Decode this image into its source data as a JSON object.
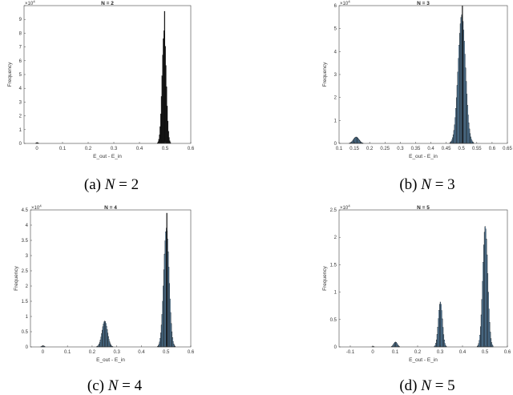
{
  "chart_data": [
    {
      "type": "bar",
      "title": "N = 2",
      "xlabel": "E_out - E_in",
      "ylabel": "Frequency",
      "y_exponent": "x10^4",
      "xlim": [
        -0.05,
        0.6
      ],
      "ylim": [
        0,
        10
      ],
      "xticks": [
        0,
        0.1,
        0.2,
        0.3,
        0.4,
        0.5,
        0.6
      ],
      "xtick_labels": [
        "0",
        "0.1",
        "0.2",
        "0.3",
        "0.4",
        "0.5",
        "0.6"
      ],
      "yticks": [
        0,
        1,
        2,
        3,
        4,
        5,
        6,
        7,
        8,
        9,
        10
      ],
      "ytick_labels": [
        "0",
        "1",
        "2",
        "3",
        "4",
        "5",
        "6",
        "7",
        "8",
        "9",
        ""
      ],
      "grid": false,
      "clusters": [
        {
          "center": 0.0,
          "sigma": 0.004,
          "peak": 0.06,
          "fill": "#1a1a1a"
        },
        {
          "center": 0.495,
          "sigma": 0.008,
          "peak": 8.2,
          "fill": "#111111"
        }
      ],
      "spikes": [
        {
          "x": 0.498,
          "value": 9.6
        }
      ],
      "caption_label": "(a)",
      "caption_var": "N",
      "caption_value": "= 2"
    },
    {
      "type": "bar",
      "title": "N = 3",
      "xlabel": "E_out - E_in",
      "ylabel": "Frequency",
      "y_exponent": "x10^4",
      "xlim": [
        0.1,
        0.65
      ],
      "ylim": [
        0,
        6
      ],
      "xticks": [
        0.1,
        0.15,
        0.2,
        0.25,
        0.3,
        0.35,
        0.4,
        0.45,
        0.5,
        0.55,
        0.6,
        0.65
      ],
      "xtick_labels": [
        "0.1",
        "0.15",
        "0.2",
        "0.25",
        "0.3",
        "0.35",
        "0.4",
        "0.45",
        "0.5",
        "0.55",
        "0.6",
        "0.65"
      ],
      "yticks": [
        0,
        1,
        2,
        3,
        4,
        5,
        6
      ],
      "ytick_labels": [
        "0",
        "1",
        "2",
        "3",
        "4",
        "5",
        "6"
      ],
      "grid": false,
      "clusters": [
        {
          "center": 0.155,
          "sigma": 0.009,
          "peak": 0.28,
          "fill": "#6fa8d6"
        },
        {
          "center": 0.5,
          "sigma": 0.012,
          "peak": 5.6,
          "fill": "#6fa8d6"
        }
      ],
      "spikes": [
        {
          "x": 0.503,
          "value": 6.0
        }
      ],
      "caption_label": "(b)",
      "caption_var": "N",
      "caption_value": "= 3"
    },
    {
      "type": "bar",
      "title": "N = 4",
      "xlabel": "E_out - E_in",
      "ylabel": "Frequency",
      "y_exponent": "x10^4",
      "xlim": [
        -0.05,
        0.6
      ],
      "ylim": [
        0,
        4.5
      ],
      "xticks": [
        0,
        0.1,
        0.2,
        0.3,
        0.4,
        0.5,
        0.6
      ],
      "xtick_labels": [
        "0",
        "0.1",
        "0.2",
        "0.3",
        "0.4",
        "0.5",
        "0.6"
      ],
      "yticks": [
        0,
        0.5,
        1,
        1.5,
        2,
        2.5,
        3,
        3.5,
        4,
        4.5
      ],
      "ytick_labels": [
        "0",
        "0.5",
        "1",
        "1.5",
        "2",
        "2.5",
        "3",
        "3.5",
        "4",
        "4.5"
      ],
      "grid": false,
      "clusters": [
        {
          "center": 0.0,
          "sigma": 0.005,
          "peak": 0.04,
          "fill": "#6fa8d6"
        },
        {
          "center": 0.25,
          "sigma": 0.011,
          "peak": 0.85,
          "fill": "#6fa8d6"
        },
        {
          "center": 0.5,
          "sigma": 0.011,
          "peak": 3.9,
          "fill": "#6fa8d6"
        }
      ],
      "spikes": [
        {
          "x": 0.503,
          "value": 4.4
        }
      ],
      "caption_label": "(c)",
      "caption_var": "N",
      "caption_value": "= 4"
    },
    {
      "type": "bar",
      "title": "N = 5",
      "xlabel": "E_out - E_in",
      "ylabel": "Frequency",
      "y_exponent": "x10^4",
      "xlim": [
        -0.15,
        0.6
      ],
      "ylim": [
        0,
        2.5
      ],
      "xticks": [
        -0.1,
        0,
        0.1,
        0.2,
        0.3,
        0.4,
        0.5,
        0.6
      ],
      "xtick_labels": [
        "-0.1",
        "0",
        "0.1",
        "0.2",
        "0.3",
        "0.4",
        "0.5",
        "0.6"
      ],
      "yticks": [
        0,
        0.5,
        1,
        1.5,
        2,
        2.5
      ],
      "ytick_labels": [
        "0",
        "0.5",
        "1",
        "1.5",
        "2",
        "2.5"
      ],
      "grid": false,
      "clusters": [
        {
          "center": 0.0,
          "sigma": 0.004,
          "peak": 0.01,
          "fill": "#6fa8d6"
        },
        {
          "center": 0.1,
          "sigma": 0.008,
          "peak": 0.09,
          "fill": "#6fa8d6"
        },
        {
          "center": 0.3,
          "sigma": 0.009,
          "peak": 0.82,
          "fill": "#6fa8d6"
        },
        {
          "center": 0.5,
          "sigma": 0.011,
          "peak": 2.2,
          "fill": "#6fa8d6"
        }
      ],
      "spikes": [],
      "caption_label": "(d)",
      "caption_var": "N",
      "caption_value": "= 5"
    }
  ]
}
